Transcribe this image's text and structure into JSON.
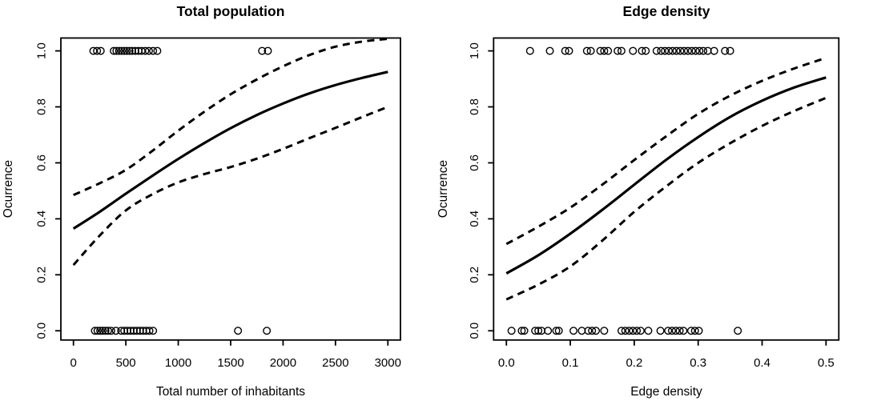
{
  "figure": {
    "background_color": "#ffffff",
    "foreground_color": "#000000",
    "description": "Two-panel R-style logistic regression occurrence plots with fitted curve, dashed 95% confidence bands and open-circle presence/absence rug points"
  },
  "chart_data": [
    {
      "type": "line",
      "title": "Total population",
      "xlabel": "Total number of inhabitants",
      "ylabel": "Ocurrence",
      "xlim": [
        -120,
        3120
      ],
      "ylim": [
        -0.033,
        1.046
      ],
      "grid": false,
      "legend": "none",
      "x_ticks": [
        0,
        500,
        1000,
        1500,
        2000,
        2500,
        3000
      ],
      "x_tick_labels": [
        "0",
        "500",
        "1000",
        "1500",
        "2000",
        "2500",
        "3000"
      ],
      "y_ticks": [
        0.0,
        0.2,
        0.4,
        0.6,
        0.8,
        1.0
      ],
      "y_tick_labels": [
        "0.0",
        "0.2",
        "0.4",
        "0.6",
        "0.8",
        "1.0"
      ],
      "series": [
        {
          "name": "fitted",
          "style": "solid",
          "x": [
            0,
            250,
            500,
            750,
            1000,
            1250,
            1500,
            1750,
            2000,
            2250,
            2500,
            2750,
            3000
          ],
          "y": [
            0.365,
            0.425,
            0.49,
            0.553,
            0.614,
            0.671,
            0.724,
            0.771,
            0.812,
            0.848,
            0.878,
            0.903,
            0.925
          ]
        },
        {
          "name": "ci-upper",
          "style": "dashed",
          "x": [
            0,
            250,
            500,
            750,
            1000,
            1250,
            1500,
            1750,
            2000,
            2250,
            2500,
            2750,
            3000
          ],
          "y": [
            0.485,
            0.527,
            0.575,
            0.642,
            0.715,
            0.783,
            0.845,
            0.898,
            0.945,
            0.985,
            1.015,
            1.033,
            1.043
          ]
        },
        {
          "name": "ci-lower",
          "style": "dashed",
          "x": [
            0,
            250,
            500,
            750,
            1000,
            1250,
            1500,
            1750,
            2000,
            2250,
            2500,
            2750,
            3000
          ],
          "y": [
            0.235,
            0.34,
            0.43,
            0.487,
            0.53,
            0.56,
            0.585,
            0.615,
            0.65,
            0.688,
            0.725,
            0.763,
            0.8
          ]
        }
      ],
      "rug_points": {
        "occurrence_1": [
          190,
          225,
          260,
          385,
          410,
          435,
          460,
          485,
          510,
          535,
          560,
          590,
          620,
          650,
          685,
          720,
          760,
          800,
          1800,
          1855
        ],
        "occurrence_0": [
          205,
          230,
          255,
          280,
          305,
          330,
          360,
          405,
          455,
          485,
          515,
          545,
          575,
          605,
          635,
          665,
          695,
          725,
          760,
          1570,
          1845
        ]
      }
    },
    {
      "type": "line",
      "title": "Edge density",
      "xlabel": "Edge density",
      "ylabel": "Ocurrence",
      "xlim": [
        -0.02,
        0.52
      ],
      "ylim": [
        -0.033,
        1.046
      ],
      "grid": false,
      "legend": "none",
      "x_ticks": [
        0.0,
        0.1,
        0.2,
        0.3,
        0.4,
        0.5
      ],
      "x_tick_labels": [
        "0.0",
        "0.1",
        "0.2",
        "0.3",
        "0.4",
        "0.5"
      ],
      "y_ticks": [
        0.0,
        0.2,
        0.4,
        0.6,
        0.8,
        1.0
      ],
      "y_tick_labels": [
        "0.0",
        "0.2",
        "0.4",
        "0.6",
        "0.8",
        "1.0"
      ],
      "series": [
        {
          "name": "fitted",
          "style": "solid",
          "x": [
            0,
            0.05,
            0.1,
            0.15,
            0.2,
            0.25,
            0.3,
            0.35,
            0.4,
            0.45,
            0.5
          ],
          "y": [
            0.205,
            0.27,
            0.347,
            0.432,
            0.522,
            0.611,
            0.692,
            0.764,
            0.822,
            0.869,
            0.905
          ]
        },
        {
          "name": "ci-upper",
          "style": "dashed",
          "x": [
            0,
            0.05,
            0.1,
            0.15,
            0.2,
            0.25,
            0.3,
            0.35,
            0.4,
            0.45,
            0.5
          ],
          "y": [
            0.31,
            0.372,
            0.44,
            0.522,
            0.61,
            0.695,
            0.775,
            0.84,
            0.893,
            0.937,
            0.975
          ]
        },
        {
          "name": "ci-lower",
          "style": "dashed",
          "x": [
            0,
            0.05,
            0.1,
            0.15,
            0.2,
            0.25,
            0.3,
            0.35,
            0.4,
            0.45,
            0.5
          ],
          "y": [
            0.112,
            0.165,
            0.23,
            0.322,
            0.425,
            0.516,
            0.6,
            0.67,
            0.732,
            0.785,
            0.832
          ]
        }
      ],
      "rug_points": {
        "occurrence_1": [
          0.037,
          0.068,
          0.092,
          0.098,
          0.126,
          0.132,
          0.147,
          0.153,
          0.159,
          0.174,
          0.18,
          0.198,
          0.212,
          0.218,
          0.235,
          0.242,
          0.248,
          0.254,
          0.26,
          0.266,
          0.272,
          0.278,
          0.284,
          0.29,
          0.296,
          0.302,
          0.308,
          0.315,
          0.325,
          0.342,
          0.35
        ],
        "occurrence_0": [
          0.008,
          0.024,
          0.028,
          0.045,
          0.05,
          0.055,
          0.065,
          0.078,
          0.082,
          0.105,
          0.118,
          0.128,
          0.134,
          0.14,
          0.153,
          0.18,
          0.186,
          0.192,
          0.198,
          0.204,
          0.21,
          0.222,
          0.241,
          0.253,
          0.259,
          0.265,
          0.271,
          0.277,
          0.289,
          0.295,
          0.301,
          0.362
        ]
      }
    }
  ]
}
